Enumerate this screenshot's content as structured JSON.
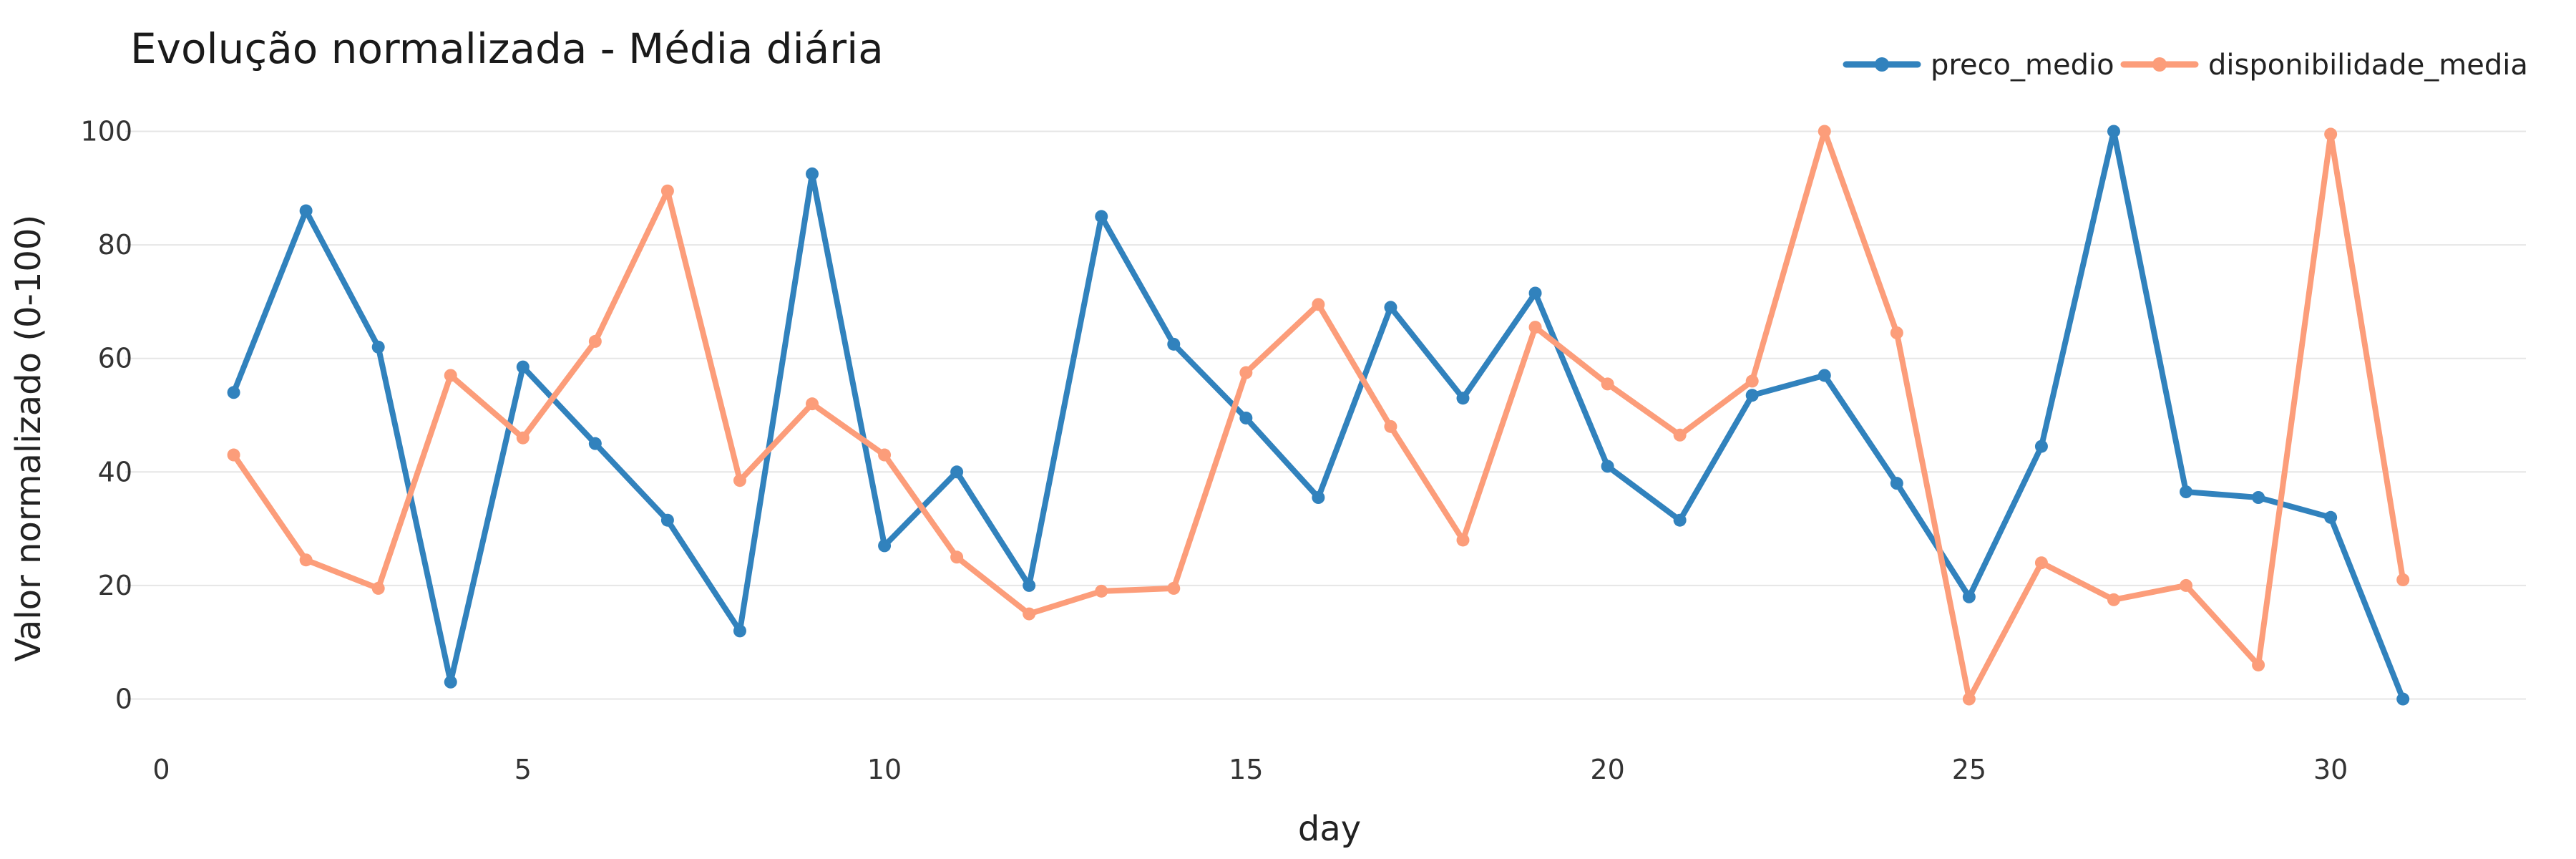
{
  "chart_data": {
    "type": "line",
    "title": "Evolução normalizada - Média diária",
    "xlabel": "day",
    "ylabel": "Valor normalizado (0-100)",
    "xlim": [
      -0.5,
      32.7
    ],
    "ylim": [
      -8,
      108
    ],
    "x_ticks": [
      0,
      5,
      10,
      15,
      20,
      25,
      30
    ],
    "y_ticks": [
      0,
      20,
      40,
      60,
      80,
      100
    ],
    "grid": "horizontal",
    "legend_position": "top-right",
    "x": [
      1,
      2,
      3,
      4,
      5,
      6,
      7,
      8,
      9,
      10,
      11,
      12,
      13,
      14,
      15,
      16,
      17,
      18,
      19,
      20,
      21,
      22,
      23,
      24,
      25,
      26,
      27,
      28,
      29,
      30,
      31
    ],
    "series": [
      {
        "name": "preco_medio",
        "color": "#3182bd",
        "values": [
          54,
          86,
          62,
          3,
          58.5,
          45,
          31.5,
          12,
          92.5,
          27,
          40,
          20,
          85,
          62.5,
          49.5,
          35.5,
          69,
          53,
          71.5,
          41,
          31.5,
          53.5,
          57,
          38,
          18,
          44.5,
          100,
          36.5,
          35.5,
          32,
          0
        ]
      },
      {
        "name": "disponibilidade_media",
        "color": "#fc9d7a",
        "values": [
          43,
          24.5,
          19.5,
          57,
          46,
          63,
          89.5,
          38.5,
          52,
          43,
          25,
          15,
          19,
          19.5,
          57.5,
          69.5,
          48,
          28,
          65.5,
          55.5,
          46.5,
          56,
          100,
          64.5,
          0,
          24,
          17.5,
          20,
          6,
          99.5,
          21
        ]
      }
    ]
  }
}
